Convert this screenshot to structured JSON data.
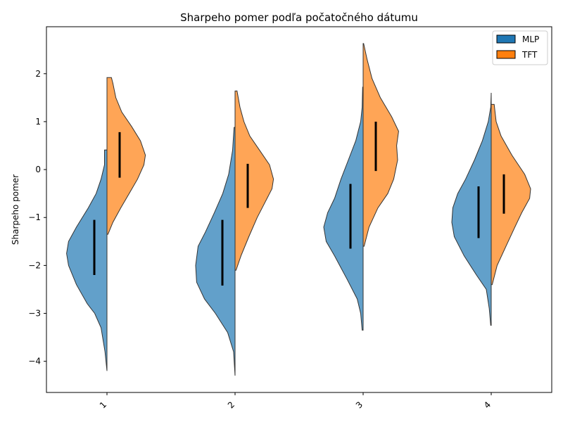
{
  "chart_data": {
    "type": "violin",
    "title": "Sharpeho pomer podľa počatočného dátumu",
    "xlabel": "",
    "ylabel": "Sharpeho pomer",
    "categories": [
      "1",
      "2",
      "3",
      "4"
    ],
    "yticks": [
      2,
      1,
      0,
      -1,
      -2,
      -3,
      -4
    ],
    "ytick_labels": [
      "2",
      "1",
      "0",
      "−1",
      "−2",
      "−3",
      "−4"
    ],
    "ylim": [
      -4.65,
      2.98
    ],
    "legend_position": "top-right",
    "split": true,
    "series": [
      {
        "name": "MLP",
        "color": "#1f77b4",
        "side": "left",
        "violins": [
          {
            "category": "1",
            "q1": -2.2,
            "q3": -1.05,
            "profile": [
              [
                -4.2,
                0.0
              ],
              [
                -3.8,
                0.04
              ],
              [
                -3.3,
                0.12
              ],
              [
                -3.0,
                0.25
              ],
              [
                -2.8,
                0.4
              ],
              [
                -2.4,
                0.62
              ],
              [
                -2.0,
                0.78
              ],
              [
                -1.75,
                0.82
              ],
              [
                -1.5,
                0.78
              ],
              [
                -1.2,
                0.62
              ],
              [
                -0.8,
                0.38
              ],
              [
                -0.5,
                0.22
              ],
              [
                -0.2,
                0.12
              ],
              [
                0.1,
                0.05
              ],
              [
                0.41,
                0.05
              ]
            ]
          },
          {
            "category": "2",
            "q1": -2.42,
            "q3": -1.05,
            "profile": [
              [
                -4.3,
                0.0
              ],
              [
                -3.8,
                0.03
              ],
              [
                -3.4,
                0.15
              ],
              [
                -3.0,
                0.4
              ],
              [
                -2.7,
                0.62
              ],
              [
                -2.35,
                0.78
              ],
              [
                -2.0,
                0.8
              ],
              [
                -1.6,
                0.75
              ],
              [
                -1.3,
                0.6
              ],
              [
                -0.9,
                0.42
              ],
              [
                -0.5,
                0.25
              ],
              [
                -0.1,
                0.13
              ],
              [
                0.4,
                0.05
              ],
              [
                0.88,
                0.02
              ]
            ]
          },
          {
            "category": "3",
            "q1": -1.65,
            "q3": -0.3,
            "profile": [
              [
                -3.35,
                0.02
              ],
              [
                -3.0,
                0.05
              ],
              [
                -2.7,
                0.12
              ],
              [
                -2.3,
                0.32
              ],
              [
                -1.8,
                0.58
              ],
              [
                -1.5,
                0.75
              ],
              [
                -1.2,
                0.8
              ],
              [
                -0.9,
                0.72
              ],
              [
                -0.6,
                0.58
              ],
              [
                -0.2,
                0.45
              ],
              [
                0.2,
                0.3
              ],
              [
                0.6,
                0.15
              ],
              [
                1.0,
                0.05
              ],
              [
                1.3,
                0.02
              ],
              [
                1.72,
                0.01
              ]
            ]
          },
          {
            "category": "4",
            "q1": -1.43,
            "q3": -0.35,
            "profile": [
              [
                -3.25,
                0.01
              ],
              [
                -2.9,
                0.04
              ],
              [
                -2.5,
                0.1
              ],
              [
                -2.2,
                0.3
              ],
              [
                -1.8,
                0.55
              ],
              [
                -1.4,
                0.75
              ],
              [
                -1.1,
                0.8
              ],
              [
                -0.8,
                0.78
              ],
              [
                -0.5,
                0.68
              ],
              [
                -0.2,
                0.52
              ],
              [
                0.2,
                0.34
              ],
              [
                0.6,
                0.18
              ],
              [
                1.0,
                0.06
              ],
              [
                1.3,
                0.01
              ],
              [
                1.6,
                0.0
              ]
            ]
          }
        ]
      },
      {
        "name": "TFT",
        "color": "#ff7f0e",
        "side": "right",
        "violins": [
          {
            "category": "1",
            "q1": -0.17,
            "q3": 0.78,
            "profile": [
              [
                -1.35,
                0.02
              ],
              [
                -1.1,
                0.12
              ],
              [
                -0.8,
                0.28
              ],
              [
                -0.5,
                0.45
              ],
              [
                -0.2,
                0.62
              ],
              [
                0.1,
                0.75
              ],
              [
                0.3,
                0.78
              ],
              [
                0.6,
                0.68
              ],
              [
                0.9,
                0.5
              ],
              [
                1.2,
                0.3
              ],
              [
                1.5,
                0.18
              ],
              [
                1.8,
                0.12
              ],
              [
                1.92,
                0.09
              ]
            ]
          },
          {
            "category": "2",
            "q1": -0.8,
            "q3": 0.12,
            "profile": [
              [
                -2.1,
                0.02
              ],
              [
                -1.8,
                0.12
              ],
              [
                -1.4,
                0.28
              ],
              [
                -1.0,
                0.45
              ],
              [
                -0.7,
                0.6
              ],
              [
                -0.4,
                0.75
              ],
              [
                -0.2,
                0.78
              ],
              [
                0.1,
                0.7
              ],
              [
                0.4,
                0.5
              ],
              [
                0.7,
                0.3
              ],
              [
                1.0,
                0.18
              ],
              [
                1.3,
                0.1
              ],
              [
                1.64,
                0.04
              ]
            ]
          },
          {
            "category": "3",
            "q1": -0.03,
            "q3": 1.0,
            "profile": [
              [
                -1.6,
                0.02
              ],
              [
                -1.2,
                0.12
              ],
              [
                -0.8,
                0.3
              ],
              [
                -0.5,
                0.5
              ],
              [
                -0.2,
                0.62
              ],
              [
                0.2,
                0.7
              ],
              [
                0.5,
                0.68
              ],
              [
                0.8,
                0.72
              ],
              [
                1.1,
                0.58
              ],
              [
                1.5,
                0.35
              ],
              [
                1.9,
                0.18
              ],
              [
                2.3,
                0.08
              ],
              [
                2.63,
                0.01
              ]
            ]
          },
          {
            "category": "4",
            "q1": -0.92,
            "q3": -0.1,
            "profile": [
              [
                -2.4,
                0.02
              ],
              [
                -2.0,
                0.12
              ],
              [
                -1.6,
                0.3
              ],
              [
                -1.2,
                0.48
              ],
              [
                -0.9,
                0.62
              ],
              [
                -0.6,
                0.78
              ],
              [
                -0.4,
                0.8
              ],
              [
                -0.1,
                0.68
              ],
              [
                0.3,
                0.42
              ],
              [
                0.7,
                0.2
              ],
              [
                1.0,
                0.1
              ],
              [
                1.36,
                0.06
              ]
            ]
          }
        ]
      }
    ]
  }
}
